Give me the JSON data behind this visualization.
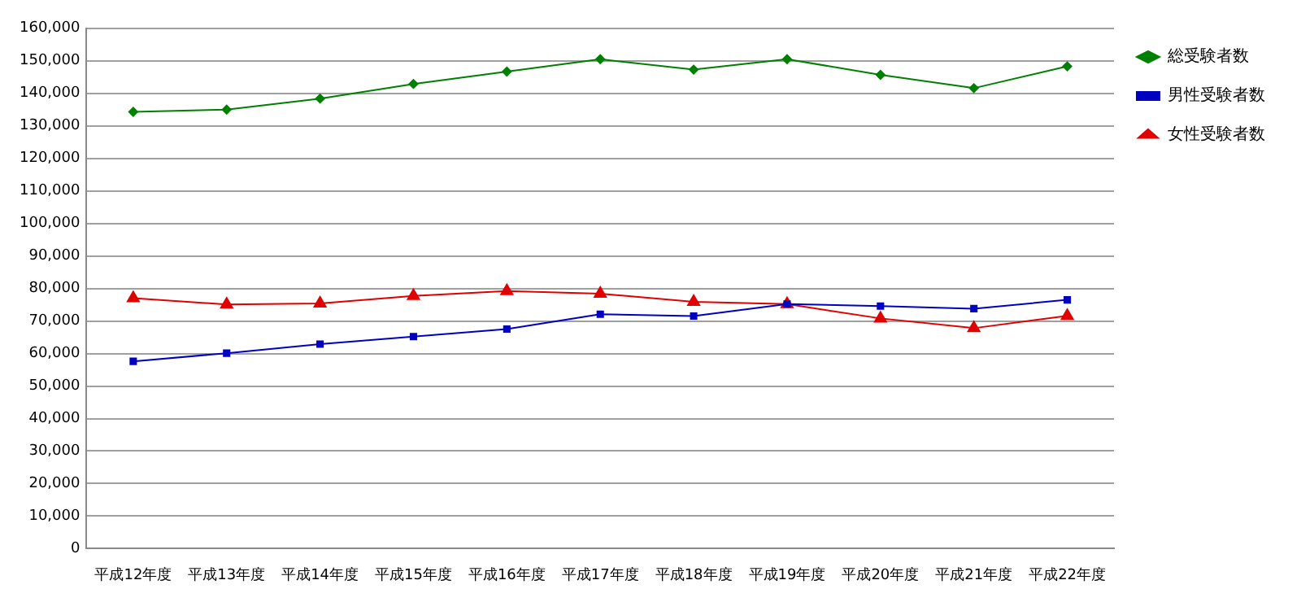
{
  "chart_data": {
    "type": "line",
    "categories": [
      "平成12年度",
      "平成13年度",
      "平成14年度",
      "平成15年度",
      "平成16年度",
      "平成17年度",
      "平成18年度",
      "平成19年度",
      "平成20年度",
      "平成21年度",
      "平成22年度"
    ],
    "series": [
      {
        "name": "総受験者数",
        "color": "#008000",
        "marker": "diamond",
        "values": [
          134300,
          135000,
          138400,
          142900,
          146700,
          150500,
          147300,
          150500,
          145700,
          141600,
          148300
        ]
      },
      {
        "name": "男性受験者数",
        "color": "#0000c0",
        "marker": "square",
        "values": [
          57600,
          60100,
          62900,
          65200,
          67500,
          72100,
          71500,
          75200,
          74600,
          73800,
          76500
        ]
      },
      {
        "name": "女性受験者数",
        "color": "#e00000",
        "marker": "triangle",
        "values": [
          77000,
          75100,
          75400,
          77700,
          79200,
          78400,
          75900,
          75200,
          70800,
          67800,
          71600
        ]
      }
    ],
    "ylim": [
      0,
      160000
    ],
    "yticks": [
      {
        "value": 0,
        "label": "0"
      },
      {
        "value": 10000,
        "label": "10,000"
      },
      {
        "value": 20000,
        "label": "20,000"
      },
      {
        "value": 30000,
        "label": "30,000"
      },
      {
        "value": 40000,
        "label": "40,000"
      },
      {
        "value": 50000,
        "label": "50,000"
      },
      {
        "value": 60000,
        "label": "60,000"
      },
      {
        "value": 70000,
        "label": "70,000"
      },
      {
        "value": 80000,
        "label": "80,000"
      },
      {
        "value": 90000,
        "label": "90,000"
      },
      {
        "value": 100000,
        "label": "100,000"
      },
      {
        "value": 110000,
        "label": "110,000"
      },
      {
        "value": 120000,
        "label": "120,000"
      },
      {
        "value": 130000,
        "label": "130,000"
      },
      {
        "value": 140000,
        "label": "140,000"
      },
      {
        "value": 150000,
        "label": "150,000"
      },
      {
        "value": 160000,
        "label": "160,000"
      }
    ],
    "grid": "y",
    "legend": "top right",
    "line_style": "solid"
  }
}
